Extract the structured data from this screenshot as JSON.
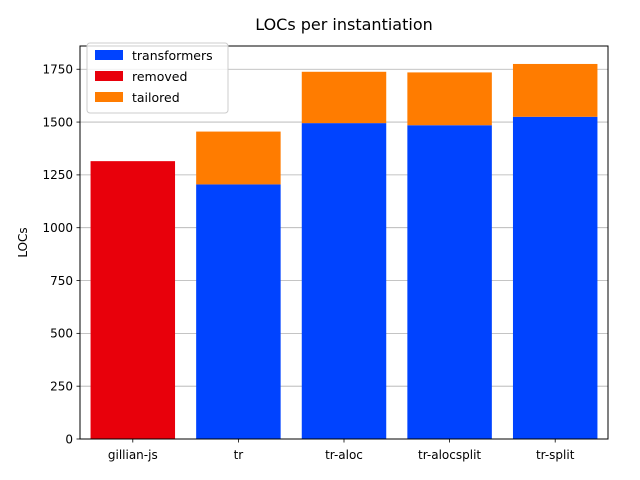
{
  "chart_data": {
    "type": "bar",
    "stacked": true,
    "title": "LOCs per instantiation",
    "xlabel": "",
    "ylabel": "LOCs",
    "categories": [
      "gillian-js",
      "tr",
      "tr-aloc",
      "tr-alocsplit",
      "tr-split"
    ],
    "series": [
      {
        "name": "transformers",
        "color": "#0043ff",
        "values": [
          0,
          1205,
          1495,
          1485,
          1525
        ]
      },
      {
        "name": "removed",
        "color": "#e8000b",
        "values": [
          1315,
          0,
          0,
          0,
          0
        ]
      },
      {
        "name": "tailored",
        "color": "#ff7c00",
        "values": [
          0,
          250,
          243,
          250,
          250
        ]
      }
    ],
    "ylim": [
      0,
      1860
    ],
    "yticks": [
      0,
      250,
      500,
      750,
      1000,
      1250,
      1500,
      1750
    ],
    "grid": "y",
    "legend": "top-left"
  }
}
